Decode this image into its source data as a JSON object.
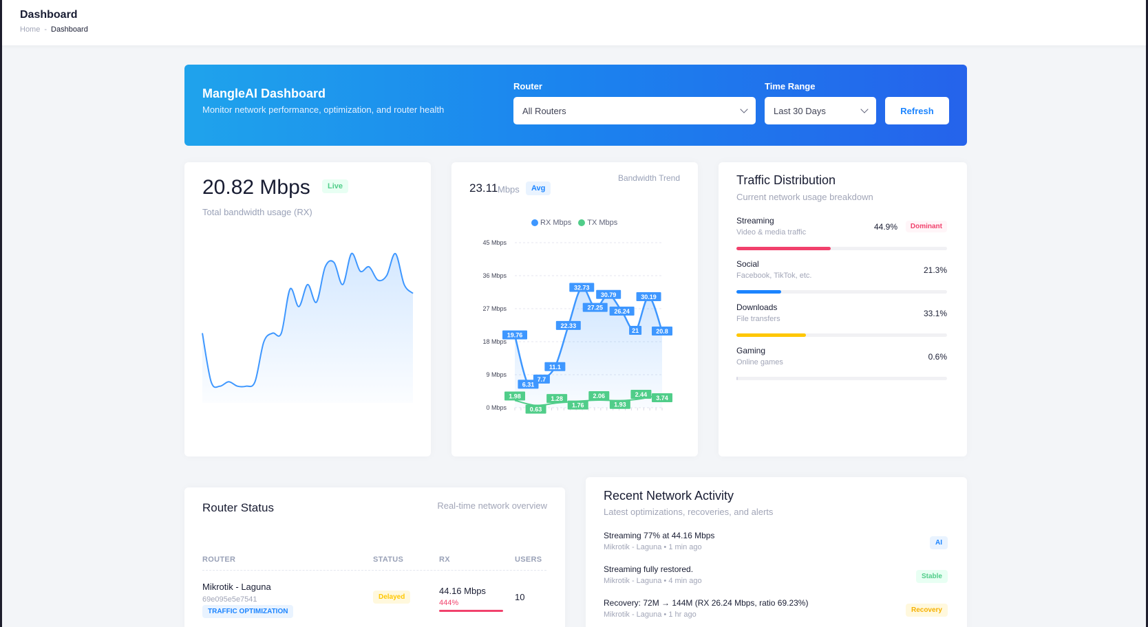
{
  "header": {
    "title": "Dashboard",
    "breadcrumb": {
      "home": "Home",
      "separator": "-",
      "current": "Dashboard"
    }
  },
  "hero": {
    "title": "MangleAI Dashboard",
    "subtitle": "Monitor network performance, optimization, and router health",
    "router_label": "Router",
    "router_value": "All Routers",
    "time_label": "Time Range",
    "time_value": "Last 30 Days",
    "refresh_label": "Refresh"
  },
  "bandwidth_card": {
    "value": "20.82 Mbps",
    "badge": "Live",
    "caption": "Total bandwidth usage (RX)"
  },
  "trend_card": {
    "avg_value": "23.11",
    "avg_unit": "Mbps",
    "avg_badge": "Avg",
    "label": "Bandwidth Trend"
  },
  "chart_data": [
    {
      "type": "area",
      "series": [
        {
          "values": [
            15,
            4,
            3,
            4,
            3,
            3,
            4,
            13,
            15,
            15,
            25,
            21,
            26,
            22,
            30,
            31,
            26,
            33,
            29,
            30,
            27,
            28,
            33,
            26,
            24
          ]
        }
      ]
    },
    {
      "type": "area",
      "ylim": [
        0,
        45
      ],
      "yticks": [
        "45 Mbps",
        "36 Mbps",
        "27 Mbps",
        "18 Mbps",
        "9 Mbps",
        "0 Mbps"
      ],
      "legend_position": "top-center",
      "series": [
        {
          "name": "RX Mbps",
          "color": "#3e97ff",
          "labels": [
            "19.76",
            "6.31",
            "7.7",
            "11.1",
            "22.33",
            "32.73",
            "27.25",
            "30.79",
            "26.24",
            "21",
            "30.19",
            "20.8"
          ],
          "values": [
            19.76,
            6.31,
            7.7,
            11.1,
            22.33,
            32.73,
            27.25,
            30.79,
            26.24,
            21,
            30.19,
            20.82
          ]
        },
        {
          "name": "TX Mbps",
          "color": "#50cd89",
          "labels": [
            "1.98",
            "0.63",
            "1.28",
            "1.76",
            "2.06",
            "1.93",
            "2.44",
            "3.74"
          ],
          "values": [
            1.98,
            0.63,
            1.28,
            1.76,
            2.06,
            1.93,
            2.44,
            3.74
          ]
        }
      ]
    }
  ],
  "traffic": {
    "title": "Traffic Distribution",
    "subtitle": "Current network usage breakdown",
    "dominant_label": "Dominant",
    "items": [
      {
        "name": "Streaming",
        "desc": "Video & media traffic",
        "pct": "44.9%",
        "value": 44.9,
        "color": "#f1416c"
      },
      {
        "name": "Social",
        "desc": "Facebook, TikTok, etc.",
        "pct": "21.3%",
        "value": 21.3,
        "color": "#1b84ff"
      },
      {
        "name": "Downloads",
        "desc": "File transfers",
        "pct": "33.1%",
        "value": 33.1,
        "color": "#ffc700"
      },
      {
        "name": "Gaming",
        "desc": "Online games",
        "pct": "0.6%",
        "value": 0.6,
        "color": "#d8d8e5"
      }
    ]
  },
  "router_status": {
    "title": "Router Status",
    "subtitle": "Real-time network overview",
    "columns": [
      "ROUTER",
      "STATUS",
      "RX",
      "USERS"
    ],
    "row": {
      "name": "Mikrotik - Laguna",
      "id": "69e095e5e7541",
      "tag": "TRAFFIC OPTIMIZATION",
      "status": "Delayed",
      "rx": "44.16 Mbps",
      "rx_pct": "444%",
      "users": "10"
    }
  },
  "activity": {
    "title": "Recent Network Activity",
    "subtitle": "Latest optimizations, recoveries, and alerts",
    "items": [
      {
        "text": "Streaming 77% at 44.16 Mbps",
        "meta": "Mikrotik - Laguna • 1 min ago",
        "tag": "AI"
      },
      {
        "text": "Streaming fully restored.",
        "meta": "Mikrotik - Laguna • 4 min ago",
        "tag": "Stable"
      },
      {
        "text": "Recovery: 72M → 144M (RX 26.24 Mbps, ratio 69.23%)",
        "meta": "Mikrotik - Laguna • 1 hr ago",
        "tag": "Recovery"
      }
    ]
  }
}
